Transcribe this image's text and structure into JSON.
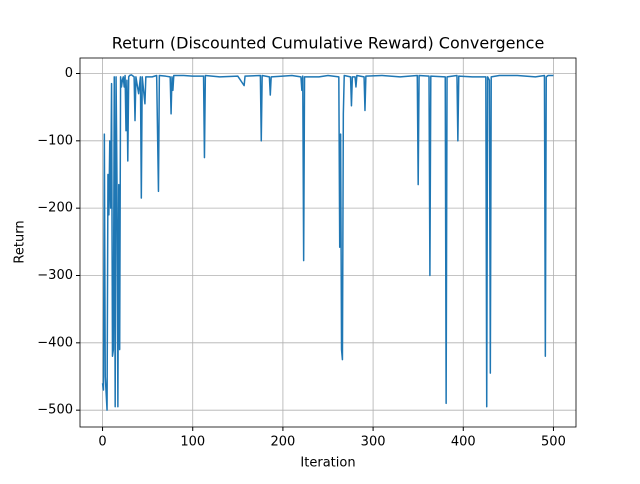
{
  "chart_data": {
    "type": "line",
    "title": "Return (Discounted Cumulative Reward) Convergence",
    "xlabel": "Iteration",
    "ylabel": "Return",
    "x": [
      0,
      1,
      2,
      3,
      4,
      5,
      6,
      7,
      8,
      9,
      10,
      11,
      12,
      13,
      14,
      15,
      16,
      17,
      18,
      19,
      20,
      21,
      22,
      23,
      24,
      25,
      26,
      27,
      28,
      29,
      30,
      32,
      35,
      36,
      37,
      40,
      42,
      43,
      44,
      47,
      48,
      55,
      60,
      62,
      63,
      70,
      75,
      76,
      77,
      78,
      79,
      90,
      100,
      112,
      113,
      114,
      130,
      150,
      157,
      158,
      175,
      176,
      177,
      185,
      186,
      187,
      200,
      210,
      220,
      221,
      222,
      223,
      224,
      240,
      250,
      262,
      263,
      264,
      265,
      266,
      267,
      268,
      275,
      276,
      277,
      280,
      281,
      282,
      290,
      291,
      292,
      310,
      330,
      349,
      350,
      351,
      362,
      363,
      364,
      380,
      381,
      382,
      393,
      394,
      395,
      410,
      425,
      426,
      427,
      429,
      430,
      431,
      440,
      460,
      480,
      490,
      491,
      492,
      494,
      500
    ],
    "series": [
      {
        "name": "Return",
        "color": "#1f77b4",
        "values": [
          -460,
          -470,
          -90,
          -450,
          -475,
          -500,
          -150,
          -210,
          -100,
          -200,
          -15,
          -420,
          -410,
          -5,
          -495,
          -5,
          -160,
          -495,
          -165,
          -410,
          -5,
          -20,
          -10,
          -5,
          -20,
          -3,
          -85,
          -10,
          -130,
          -5,
          -3,
          -2,
          -5,
          -70,
          -5,
          -30,
          -5,
          -185,
          -5,
          -45,
          -5,
          -5,
          -3,
          -175,
          -3,
          -4,
          -5,
          -60,
          -5,
          -25,
          -3,
          -3,
          -4,
          -4,
          -125,
          -3,
          -5,
          -4,
          -18,
          -4,
          -3,
          -100,
          -3,
          -5,
          -32,
          -5,
          -4,
          -3,
          -5,
          -25,
          -4,
          -278,
          -5,
          -5,
          -3,
          -5,
          -258,
          -90,
          -410,
          -425,
          -60,
          -3,
          -5,
          -48,
          -5,
          -5,
          -20,
          -3,
          -5,
          -55,
          -4,
          -3,
          -5,
          -3,
          -165,
          -3,
          -4,
          -300,
          -4,
          -5,
          -490,
          -5,
          -3,
          -100,
          -4,
          -5,
          -5,
          -495,
          -5,
          -10,
          -445,
          -5,
          -3,
          -3,
          -5,
          -3,
          -420,
          -5,
          -3,
          -3
        ]
      }
    ],
    "xlim": [
      -25,
      525
    ],
    "ylim": [
      -525,
      23
    ],
    "xticks": [
      0,
      100,
      200,
      300,
      400,
      500
    ],
    "yticks": [
      {
        "value": -500,
        "label": "−500"
      },
      {
        "value": -400,
        "label": "−400"
      },
      {
        "value": -300,
        "label": "−300"
      },
      {
        "value": -200,
        "label": "−200"
      },
      {
        "value": -100,
        "label": "−100"
      },
      0
    ],
    "grid": true
  }
}
